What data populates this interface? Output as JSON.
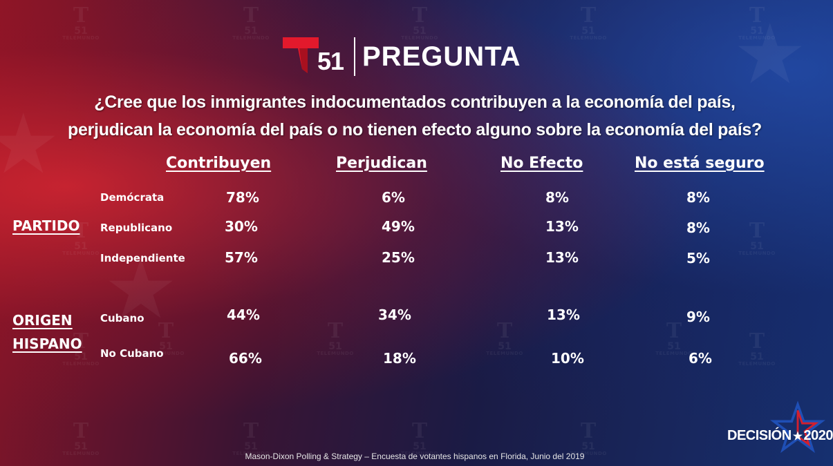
{
  "header": {
    "logo_number": "51",
    "title": "PREGUNTA"
  },
  "question": {
    "line1": "¿Cree que los inmigrantes indocumentados contribuyen a la economía del país,",
    "line2": "perjudican la economía del país o no tienen efecto alguno sobre la economía del país?"
  },
  "table": {
    "columns": [
      "Contribuyen",
      "Perjudican",
      "No Efecto",
      "No está seguro"
    ],
    "groups": [
      {
        "label": "PARTIDO",
        "rows": [
          {
            "label": "Demócrata",
            "values": [
              "78%",
              "6%",
              "8%",
              "8%"
            ]
          },
          {
            "label": "Republicano",
            "values": [
              "30%",
              "49%",
              "13%",
              "8%"
            ]
          },
          {
            "label": "Independiente",
            "values": [
              "57%",
              "25%",
              "13%",
              "5%"
            ]
          }
        ]
      },
      {
        "label_line1": "ORIGEN",
        "label_line2": "HISPANO",
        "rows": [
          {
            "label": "Cubano",
            "values": [
              "44%",
              "34%",
              "13%",
              "9%"
            ]
          },
          {
            "label": "No Cubano",
            "values": [
              "66%",
              "18%",
              "10%",
              "6%"
            ]
          }
        ]
      }
    ]
  },
  "footer": {
    "source": "Mason-Dixon  Polling & Strategy – Encuesta de votantes hispanos en Florida, Junio del 2019"
  },
  "brand": {
    "word": "DECISIÓN",
    "year": "2020"
  },
  "watermark": {
    "number": "51",
    "network": "TELEMUNDO"
  },
  "colors": {
    "logo_red": "#e3192c",
    "brand_star_blue": "#1f4fb5",
    "brand_star_red": "#d2202f"
  }
}
